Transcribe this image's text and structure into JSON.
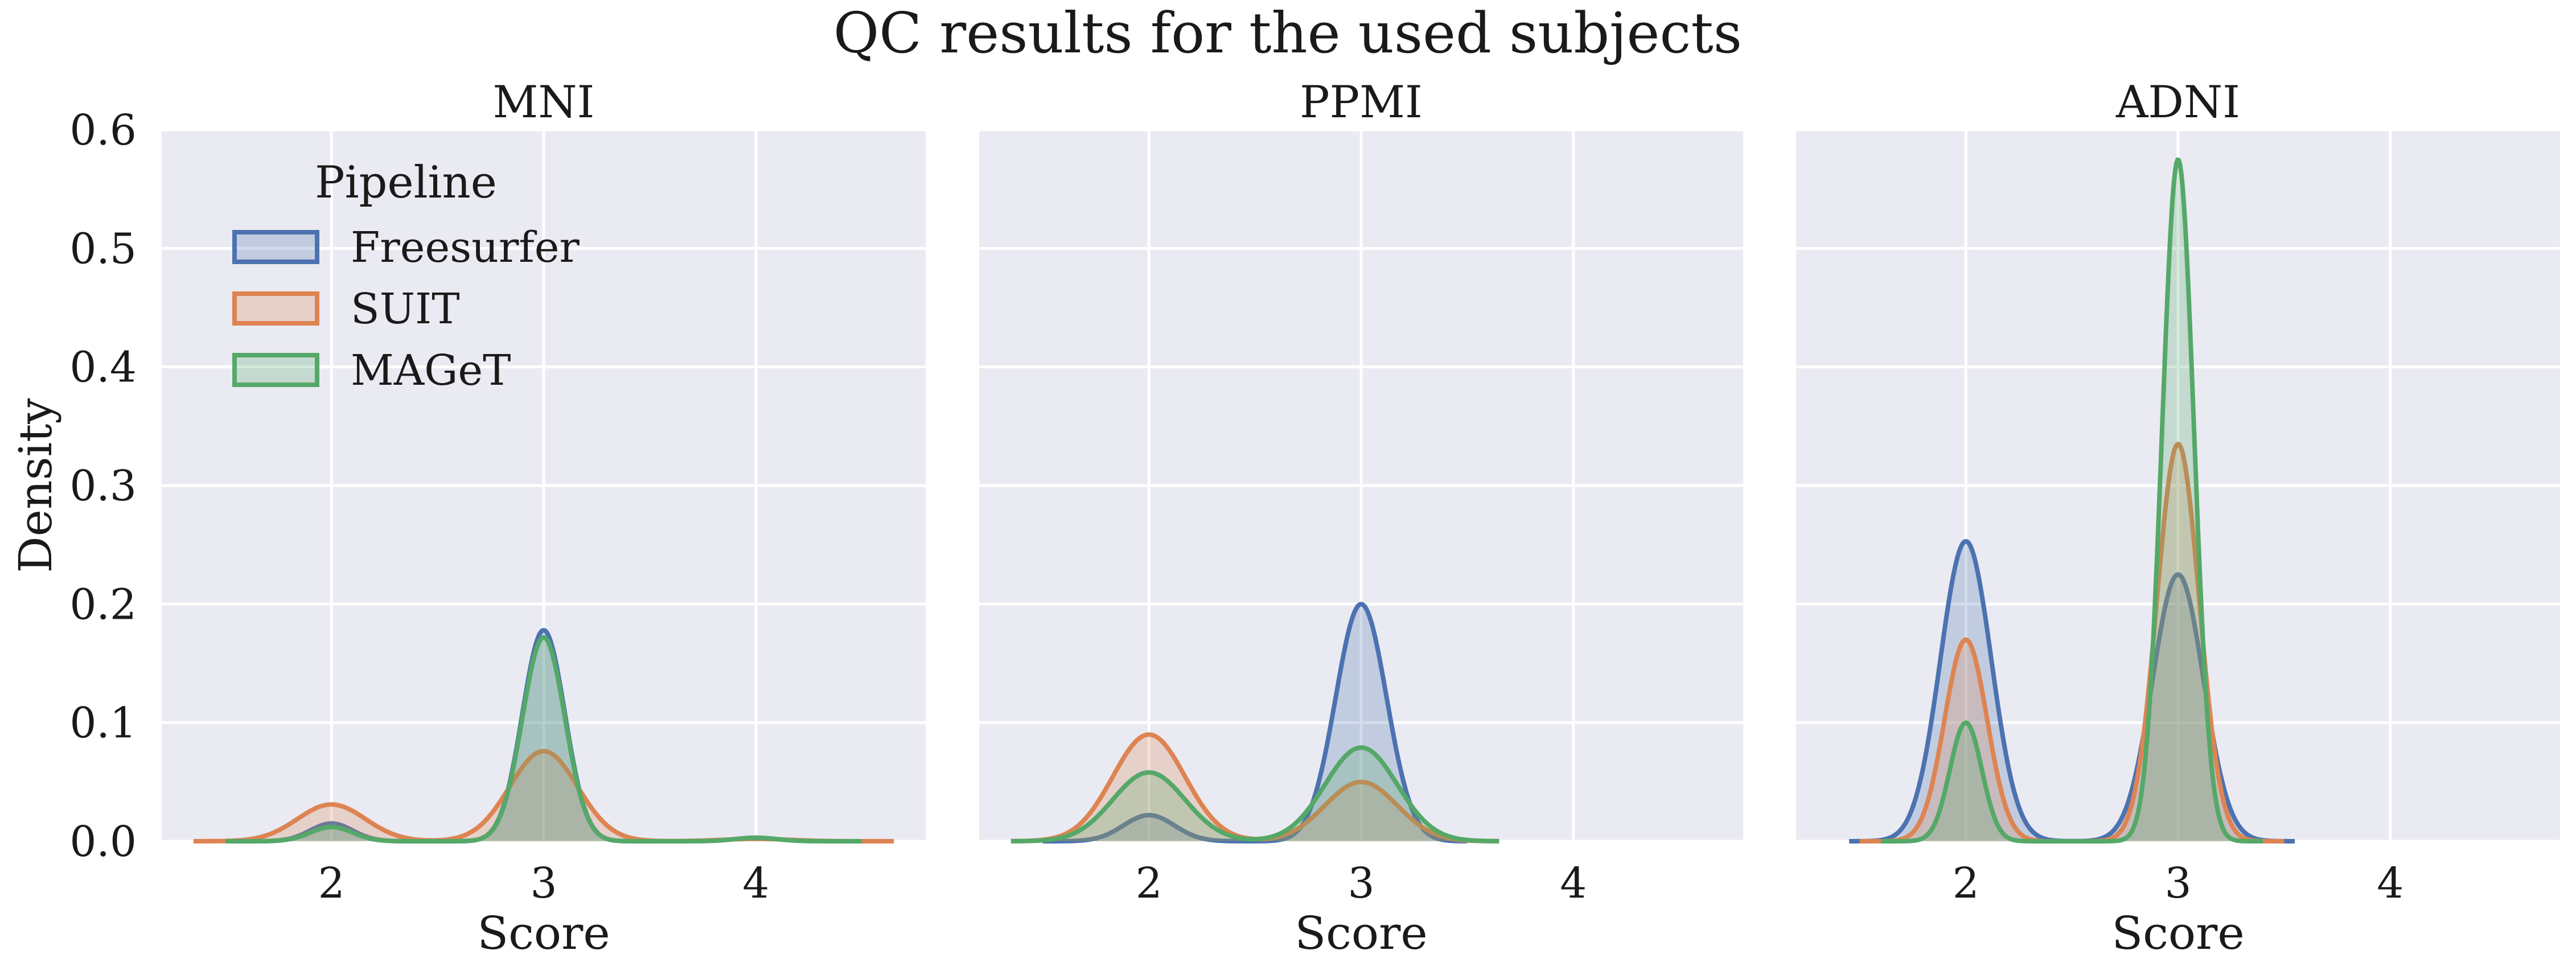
{
  "figure": {
    "title": "QC results for the used subjects",
    "colors": {
      "panel_background": "#EAEAF2",
      "grid": "#FFFFFF",
      "text": "#1A1A1A"
    }
  },
  "legend": {
    "title": "Pipeline",
    "placement": "upper-left of first panel",
    "entries": [
      "Freesurfer",
      "SUIT",
      "MAGeT"
    ]
  },
  "chart_data": [
    {
      "type": "area",
      "kind": "kde",
      "title": "MNI",
      "xlabel": "Score",
      "ylabel": "Density",
      "xlim": [
        1.2,
        4.8
      ],
      "ylim": [
        0,
        0.6
      ],
      "xticks": [
        "2",
        "3",
        "4"
      ],
      "yticks": [
        "0.0",
        "0.1",
        "0.2",
        "0.3",
        "0.4",
        "0.5",
        "0.6"
      ],
      "grid": true,
      "series": [
        {
          "name": "Freesurfer",
          "color": "#4C72B0",
          "support": [
            1.5,
            3.5
          ],
          "peaks": [
            {
              "x": 2,
              "density": 0.015,
              "sd": 0.1
            },
            {
              "x": 3,
              "density": 0.178,
              "sd": 0.1
            }
          ]
        },
        {
          "name": "SUIT",
          "color": "#DD8452",
          "support": [
            1.35,
            4.65
          ],
          "peaks": [
            {
              "x": 2,
              "density": 0.031,
              "sd": 0.16
            },
            {
              "x": 3,
              "density": 0.076,
              "sd": 0.16
            },
            {
              "x": 4,
              "density": 0.002,
              "sd": 0.16
            }
          ]
        },
        {
          "name": "MAGeT",
          "color": "#55A868",
          "support": [
            1.5,
            4.5
          ],
          "peaks": [
            {
              "x": 2,
              "density": 0.012,
              "sd": 0.1
            },
            {
              "x": 3,
              "density": 0.172,
              "sd": 0.1
            },
            {
              "x": 4,
              "density": 0.003,
              "sd": 0.1
            }
          ]
        }
      ]
    },
    {
      "type": "area",
      "kind": "kde",
      "title": "PPMI",
      "xlabel": "Score",
      "ylabel": "",
      "xlim": [
        1.2,
        4.8
      ],
      "ylim": [
        0,
        0.6
      ],
      "xticks": [
        "2",
        "3",
        "4"
      ],
      "yticks": [],
      "grid": true,
      "series": [
        {
          "name": "Freesurfer",
          "color": "#4C72B0",
          "support": [
            1.5,
            3.5
          ],
          "peaks": [
            {
              "x": 2,
              "density": 0.022,
              "sd": 0.12
            },
            {
              "x": 3,
              "density": 0.2,
              "sd": 0.12
            }
          ]
        },
        {
          "name": "SUIT",
          "color": "#DD8452",
          "support": [
            1.35,
            3.65
          ],
          "peaks": [
            {
              "x": 2,
              "density": 0.09,
              "sd": 0.17
            },
            {
              "x": 3,
              "density": 0.05,
              "sd": 0.17
            }
          ]
        },
        {
          "name": "MAGeT",
          "color": "#55A868",
          "support": [
            1.35,
            3.65
          ],
          "peaks": [
            {
              "x": 2,
              "density": 0.058,
              "sd": 0.17
            },
            {
              "x": 3,
              "density": 0.079,
              "sd": 0.17
            }
          ]
        }
      ]
    },
    {
      "type": "area",
      "kind": "kde",
      "title": "ADNI",
      "xlabel": "Score",
      "ylabel": "",
      "xlim": [
        1.2,
        4.8
      ],
      "ylim": [
        0,
        0.6
      ],
      "xticks": [
        "2",
        "3",
        "4"
      ],
      "yticks": [],
      "grid": true,
      "series": [
        {
          "name": "Freesurfer",
          "color": "#4C72B0",
          "support": [
            1.45,
            3.55
          ],
          "peaks": [
            {
              "x": 2,
              "density": 0.253,
              "sd": 0.12
            },
            {
              "x": 3,
              "density": 0.225,
              "sd": 0.12
            }
          ]
        },
        {
          "name": "SUIT",
          "color": "#DD8452",
          "support": [
            1.5,
            3.5
          ],
          "peaks": [
            {
              "x": 2,
              "density": 0.17,
              "sd": 0.1
            },
            {
              "x": 3,
              "density": 0.335,
              "sd": 0.1
            }
          ]
        },
        {
          "name": "MAGeT",
          "color": "#55A868",
          "support": [
            1.6,
            3.4
          ],
          "peaks": [
            {
              "x": 2,
              "density": 0.1,
              "sd": 0.075
            },
            {
              "x": 3,
              "density": 0.575,
              "sd": 0.075
            }
          ]
        }
      ]
    }
  ]
}
